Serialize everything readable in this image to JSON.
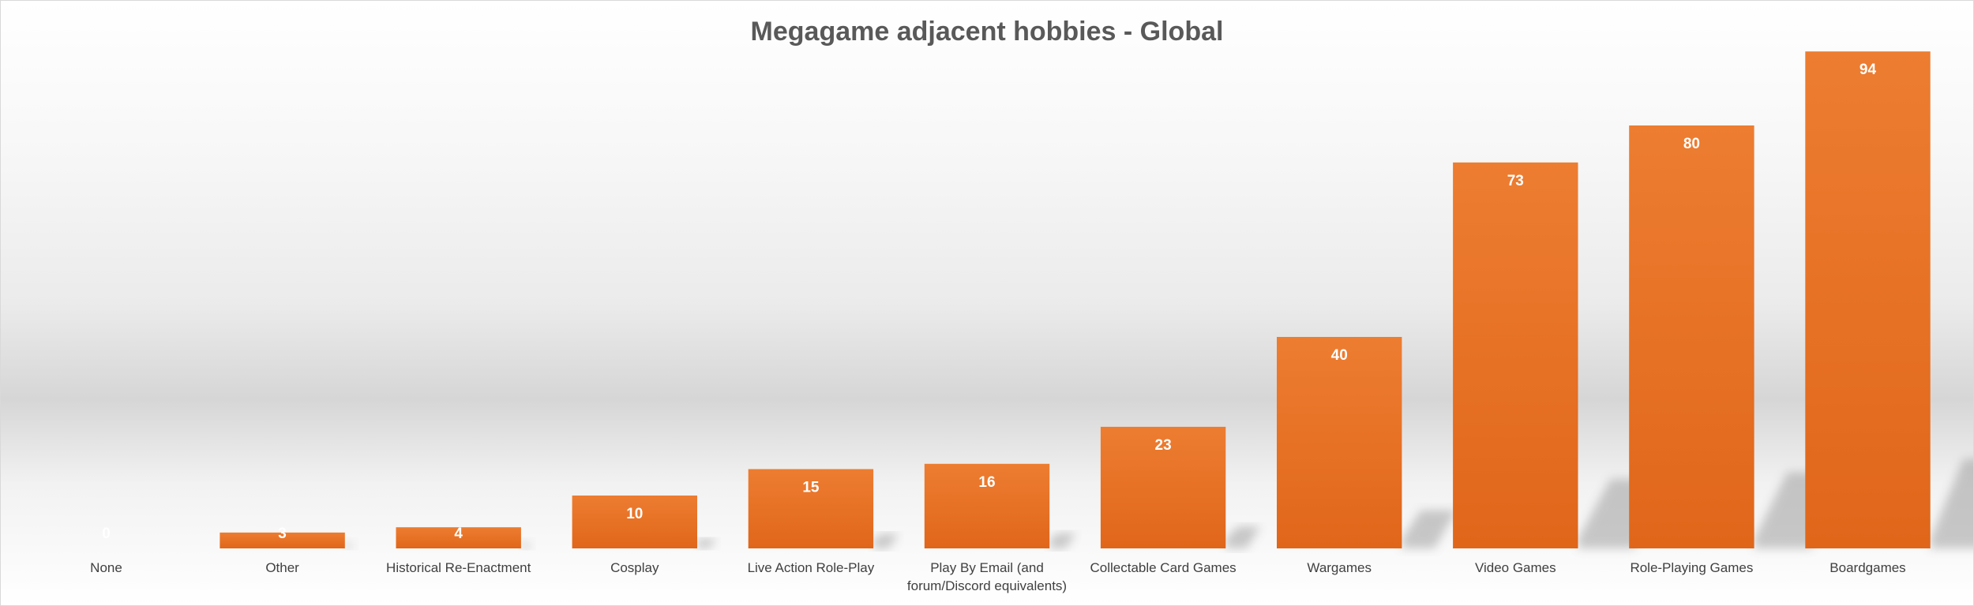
{
  "chart_data": {
    "type": "bar",
    "title": "Megagame adjacent hobbies - Global",
    "xlabel": "",
    "ylabel": "",
    "categories": [
      "None",
      "Other",
      "Historical Re-Enactment",
      "Cosplay",
      "Live Action Role-Play",
      "Play By Email (and forum/Discord equivalents)",
      "Collectable Card Games",
      "Wargames",
      "Video Games",
      "Role-Playing Games",
      "Boardgames"
    ],
    "category_lines": [
      [
        "None"
      ],
      [
        "Other"
      ],
      [
        "Historical Re-Enactment"
      ],
      [
        "Cosplay"
      ],
      [
        "Live Action Role-Play"
      ],
      [
        "Play By Email (and",
        "forum/Discord equivalents)"
      ],
      [
        "Collectable Card Games"
      ],
      [
        "Wargames"
      ],
      [
        "Video Games"
      ],
      [
        "Role-Playing Games"
      ],
      [
        "Boardgames"
      ]
    ],
    "values": [
      0,
      3,
      4,
      10,
      15,
      16,
      23,
      40,
      73,
      80,
      94
    ],
    "ylim": [
      0,
      100
    ],
    "grid": false,
    "legend": "none",
    "colors": {
      "bar_top": "#ED7D31",
      "bar_bottom": "#E0661A",
      "title": "#595959",
      "labels": "#404040"
    }
  }
}
